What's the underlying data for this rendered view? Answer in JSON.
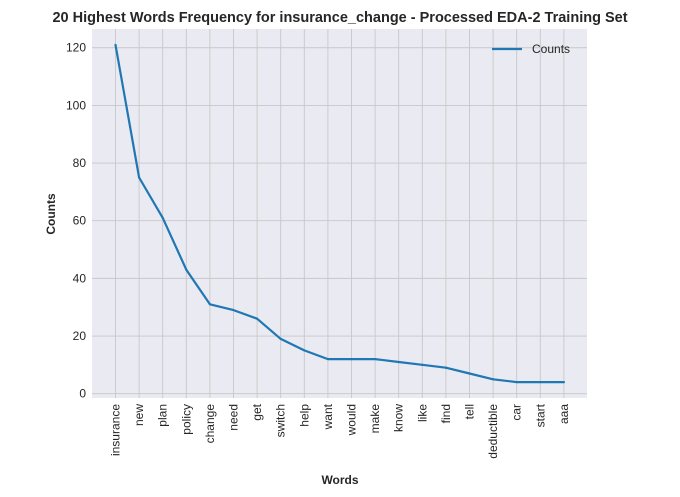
{
  "chart_data": {
    "type": "line",
    "title": "20 Highest Words Frequency for insurance_change - Processed EDA-2 Training Set",
    "xlabel": "Words",
    "ylabel": "Counts",
    "categories": [
      "insurance",
      "new",
      "plan",
      "policy",
      "change",
      "need",
      "get",
      "switch",
      "help",
      "want",
      "would",
      "make",
      "know",
      "like",
      "find",
      "tell",
      "deductible",
      "car",
      "start",
      "aaa"
    ],
    "series": [
      {
        "name": "Counts",
        "values": [
          121,
          75,
          61,
          43,
          31,
          29,
          26,
          19,
          15,
          12,
          12,
          12,
          11,
          10,
          9,
          7,
          5,
          4,
          4,
          4
        ],
        "color": "#1f77b4"
      }
    ],
    "ylim": [
      -1.5,
      126.5
    ],
    "yticks": [
      "0",
      "20",
      "40",
      "60",
      "80",
      "100",
      "120"
    ],
    "grid": true,
    "legend_position": "top-right",
    "colors": {
      "background": "#eaeaf2",
      "grid": "#c8c8c8",
      "line": "#1f77b4"
    }
  }
}
